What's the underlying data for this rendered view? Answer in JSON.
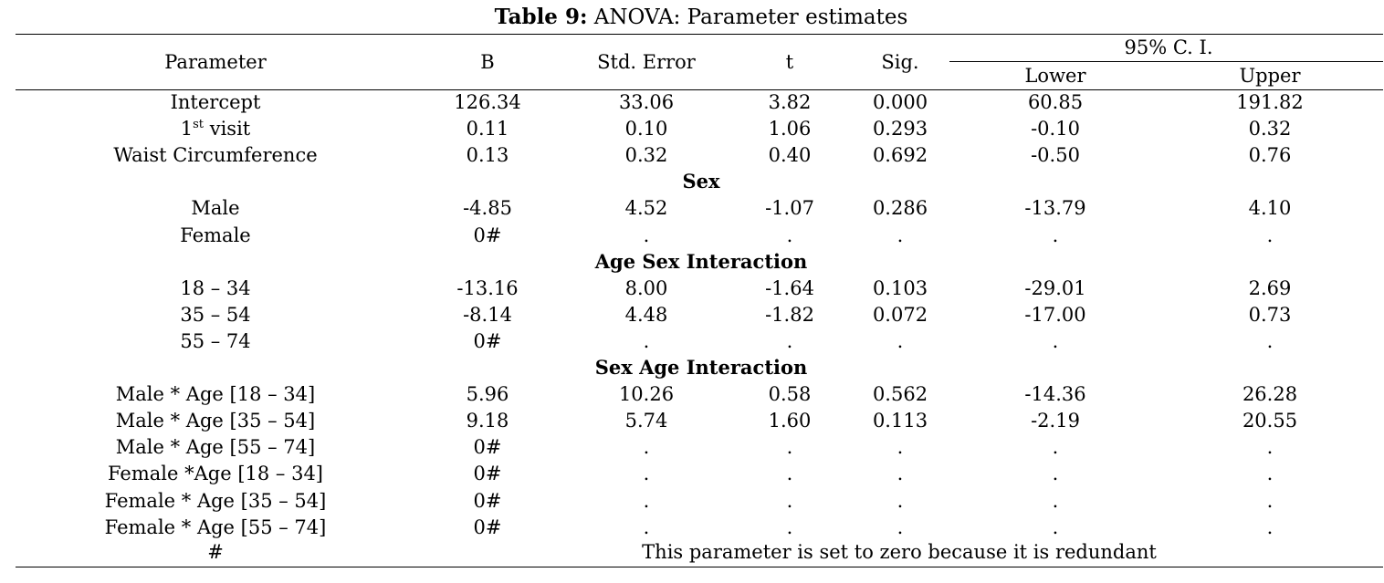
{
  "caption": {
    "label": "Table 9:",
    "text": " ANOVA: Parameter estimates"
  },
  "headers": {
    "parameter": "Parameter",
    "b": "B",
    "std_error": "Std. Error",
    "t": "t",
    "sig": "Sig.",
    "ci": "95% C. I.",
    "lower": "Lower",
    "upper": "Upper"
  },
  "rows": [
    {
      "parameter": "Intercept",
      "b": "126.34",
      "se": "33.06",
      "t": "3.82",
      "sig": "0.000",
      "lower": "60.85",
      "upper": "191.82"
    },
    {
      "parameter_prefix": "1",
      "parameter_sup": "st",
      "parameter_suffix": " visit",
      "b": "0.11",
      "se": "0.10",
      "t": "1.06",
      "sig": "0.293",
      "lower": "-0.10",
      "upper": "0.32"
    },
    {
      "parameter": "Waist Circumference",
      "b": "0.13",
      "se": "0.32",
      "t": "0.40",
      "sig": "0.692",
      "lower": "-0.50",
      "upper": "0.76"
    },
    {
      "section": "Sex"
    },
    {
      "parameter": "Male",
      "b": "-4.85",
      "se": "4.52",
      "t": "-1.07",
      "sig": "0.286",
      "lower": "-13.79",
      "upper": "4.10"
    },
    {
      "parameter": "Female",
      "b": "0#",
      "se": ".",
      "t": ".",
      "sig": ".",
      "lower": ".",
      "upper": "."
    },
    {
      "section": "Age Sex Interaction"
    },
    {
      "parameter": "18  – 34",
      "b": "-13.16",
      "se": "8.00",
      "t": "-1.64",
      "sig": "0.103",
      "lower": "-29.01",
      "upper": "2.69"
    },
    {
      "parameter": "35  – 54",
      "b": "-8.14",
      "se": "4.48",
      "t": "-1.82",
      "sig": "0.072",
      "lower": "-17.00",
      "upper": "0.73"
    },
    {
      "parameter": "55  – 74",
      "b": "0#",
      "se": ".",
      "t": ".",
      "sig": ".",
      "lower": ".",
      "upper": "."
    },
    {
      "section": "Sex Age Interaction"
    },
    {
      "parameter": "Male * Age [18 – 34]",
      "b": "5.96",
      "se": "10.26",
      "t": "0.58",
      "sig": "0.562",
      "lower": "-14.36",
      "upper": "26.28"
    },
    {
      "parameter": "Male * Age [35 – 54]",
      "b": "9.18",
      "se": "5.74",
      "t": "1.60",
      "sig": "0.113",
      "lower": "-2.19",
      "upper": "20.55"
    },
    {
      "parameter": "Male * Age [55 – 74]",
      "b": "0#",
      "se": ".",
      "t": ".",
      "sig": ".",
      "lower": ".",
      "upper": "."
    },
    {
      "parameter": "Female *Age [18 – 34]",
      "b": "0#",
      "se": ".",
      "t": ".",
      "sig": ".",
      "lower": ".",
      "upper": "."
    },
    {
      "parameter": "Female * Age [35 – 54]",
      "b": "0#",
      "se": ".",
      "t": ".",
      "sig": ".",
      "lower": ".",
      "upper": "."
    },
    {
      "parameter": "Female * Age [55 – 74]",
      "b": "0#",
      "se": ".",
      "t": ".",
      "sig": ".",
      "lower": ".",
      "upper": "."
    }
  ],
  "footnote": {
    "symbol": "#",
    "text": "This parameter is set to zero because it is redundant"
  }
}
